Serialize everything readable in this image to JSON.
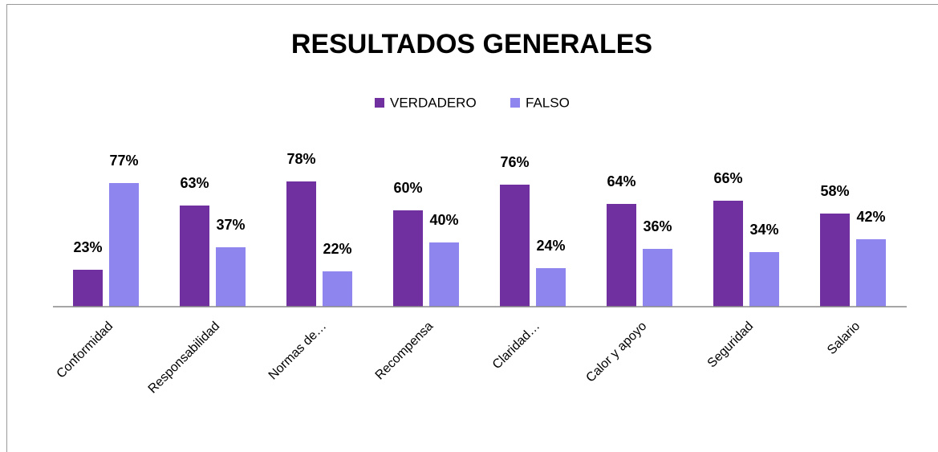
{
  "chart_data": {
    "type": "bar",
    "title": "RESULTADOS GENERALES",
    "categories": [
      "Conformidad",
      "Responsabilidad",
      "Normas de…",
      "Recompensa",
      "Claridad…",
      "Calor y apoyo",
      "Seguridad",
      "Salario"
    ],
    "series": [
      {
        "name": "VERDADERO",
        "color": "#7030a0",
        "values": [
          23,
          63,
          78,
          60,
          76,
          64,
          66,
          58
        ],
        "value_labels": [
          "23%",
          "63%",
          "78%",
          "60%",
          "76%",
          "64%",
          "66%",
          "58%"
        ]
      },
      {
        "name": "FALSO",
        "color": "#8e86ee",
        "values": [
          77,
          37,
          22,
          40,
          24,
          36,
          34,
          42
        ],
        "value_labels": [
          "77%",
          "37%",
          "22%",
          "40%",
          "24%",
          "36%",
          "34%",
          "42%"
        ]
      }
    ],
    "legend": "top"
  }
}
